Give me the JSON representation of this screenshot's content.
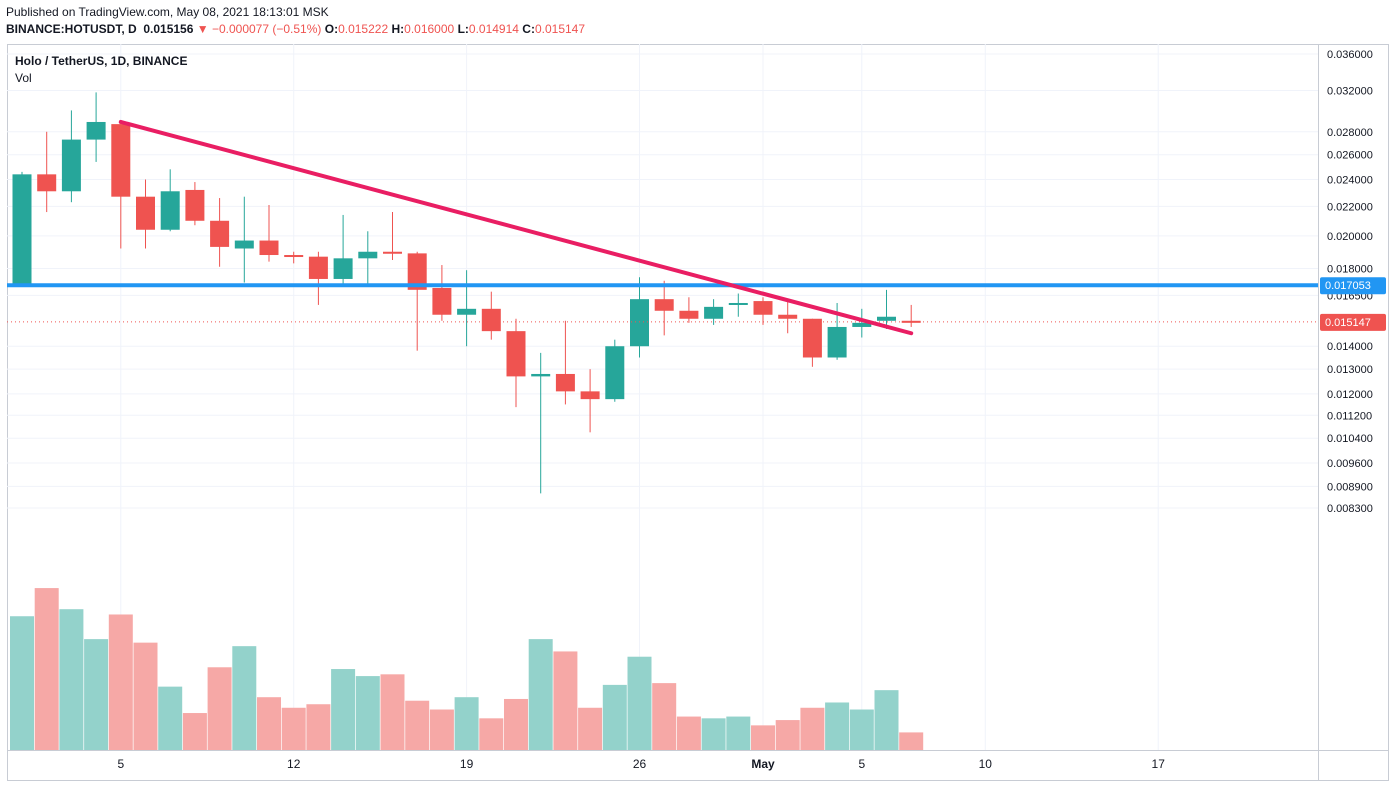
{
  "header": {
    "published": "Published on TradingView.com, May 08, 2021 18:13:01 MSK",
    "symbol": "BINANCE:HOTUSDT, D",
    "last": "0.015156",
    "change": "▼ −0.000077 (−0.51%)",
    "o_label": "O:",
    "o_value": "0.015222",
    "h_label": "H:",
    "h_value": "0.016000",
    "l_label": "L:",
    "l_value": "0.014914",
    "c_label": "C:",
    "c_value": "0.015147"
  },
  "legend": {
    "title": "Holo / TetherUS, 1D, BINANCE",
    "volume": "Vol"
  },
  "colors": {
    "up": "#26a69a",
    "down": "#ef5350",
    "up_vol": "#93d2cb",
    "down_vol": "#f6a8a6",
    "trendline": "#e91e63",
    "support": "#2196f3",
    "grid": "#f0f3fa",
    "axis_text": "#131722"
  },
  "chart_data": {
    "type": "candlestick",
    "title": "Holo / TetherUS, 1D, BINANCE",
    "y_scale": "log",
    "price_ticks": [
      "0.036000",
      "0.032000",
      "0.028000",
      "0.026000",
      "0.024000",
      "0.022000",
      "0.020000",
      "0.018000",
      "0.016500",
      "0.014000",
      "0.013000",
      "0.012000",
      "0.011200",
      "0.010400",
      "0.009600",
      "0.008900",
      "0.008300"
    ],
    "x_tick_labels": [
      {
        "date": "2021-04-05",
        "label": "5"
      },
      {
        "date": "2021-04-12",
        "label": "12"
      },
      {
        "date": "2021-04-19",
        "label": "19"
      },
      {
        "date": "2021-04-26",
        "label": "26"
      },
      {
        "date": "2021-05-01",
        "label": "May"
      },
      {
        "date": "2021-05-05",
        "label": "5"
      },
      {
        "date": "2021-05-10",
        "label": "10"
      },
      {
        "date": "2021-05-17",
        "label": "17"
      }
    ],
    "candles": [
      {
        "date": "2021-04-01",
        "o": 0.0171,
        "h": 0.0246,
        "l": 0.017,
        "c": 0.0244
      },
      {
        "date": "2021-04-02",
        "o": 0.0244,
        "h": 0.028,
        "l": 0.0216,
        "c": 0.0231
      },
      {
        "date": "2021-04-03",
        "o": 0.0231,
        "h": 0.03,
        "l": 0.0223,
        "c": 0.0273
      },
      {
        "date": "2021-04-04",
        "o": 0.0273,
        "h": 0.0318,
        "l": 0.0254,
        "c": 0.0289
      },
      {
        "date": "2021-04-05",
        "o": 0.0287,
        "h": 0.0289,
        "l": 0.0192,
        "c": 0.0227
      },
      {
        "date": "2021-04-06",
        "o": 0.0227,
        "h": 0.024,
        "l": 0.0192,
        "c": 0.0204
      },
      {
        "date": "2021-04-07",
        "o": 0.0204,
        "h": 0.0248,
        "l": 0.0203,
        "c": 0.0231
      },
      {
        "date": "2021-04-08",
        "o": 0.0232,
        "h": 0.0238,
        "l": 0.0207,
        "c": 0.021
      },
      {
        "date": "2021-04-09",
        "o": 0.021,
        "h": 0.0226,
        "l": 0.0181,
        "c": 0.0193
      },
      {
        "date": "2021-04-10",
        "o": 0.0192,
        "h": 0.0227,
        "l": 0.0172,
        "c": 0.0197
      },
      {
        "date": "2021-04-11",
        "o": 0.0197,
        "h": 0.0221,
        "l": 0.0184,
        "c": 0.0188
      },
      {
        "date": "2021-04-12",
        "o": 0.0188,
        "h": 0.019,
        "l": 0.0183,
        "c": 0.0187
      },
      {
        "date": "2021-04-13",
        "o": 0.0187,
        "h": 0.019,
        "l": 0.016,
        "c": 0.0174
      },
      {
        "date": "2021-04-14",
        "o": 0.0174,
        "h": 0.0214,
        "l": 0.017,
        "c": 0.0186
      },
      {
        "date": "2021-04-15",
        "o": 0.0186,
        "h": 0.0203,
        "l": 0.017,
        "c": 0.019
      },
      {
        "date": "2021-04-16",
        "o": 0.019,
        "h": 0.0216,
        "l": 0.0185,
        "c": 0.0189
      },
      {
        "date": "2021-04-17",
        "o": 0.0189,
        "h": 0.019,
        "l": 0.0138,
        "c": 0.0168
      },
      {
        "date": "2021-04-18",
        "o": 0.0169,
        "h": 0.0182,
        "l": 0.0152,
        "c": 0.0155
      },
      {
        "date": "2021-04-19",
        "o": 0.0155,
        "h": 0.0179,
        "l": 0.014,
        "c": 0.0158
      },
      {
        "date": "2021-04-20",
        "o": 0.0158,
        "h": 0.0167,
        "l": 0.0143,
        "c": 0.0147
      },
      {
        "date": "2021-04-21",
        "o": 0.0147,
        "h": 0.0153,
        "l": 0.0115,
        "c": 0.0127
      },
      {
        "date": "2021-04-22",
        "o": 0.0127,
        "h": 0.0137,
        "l": 0.0087,
        "c": 0.0128
      },
      {
        "date": "2021-04-23",
        "o": 0.0128,
        "h": 0.0152,
        "l": 0.0116,
        "c": 0.0121
      },
      {
        "date": "2021-04-24",
        "o": 0.0121,
        "h": 0.013,
        "l": 0.0106,
        "c": 0.0118
      },
      {
        "date": "2021-04-25",
        "o": 0.0118,
        "h": 0.0143,
        "l": 0.0117,
        "c": 0.014
      },
      {
        "date": "2021-04-26",
        "o": 0.014,
        "h": 0.0175,
        "l": 0.0135,
        "c": 0.0163
      },
      {
        "date": "2021-04-27",
        "o": 0.0163,
        "h": 0.0173,
        "l": 0.0145,
        "c": 0.0157
      },
      {
        "date": "2021-04-28",
        "o": 0.0157,
        "h": 0.0164,
        "l": 0.0151,
        "c": 0.0153
      },
      {
        "date": "2021-04-29",
        "o": 0.0153,
        "h": 0.0163,
        "l": 0.015,
        "c": 0.0159
      },
      {
        "date": "2021-04-30",
        "o": 0.016,
        "h": 0.0166,
        "l": 0.0154,
        "c": 0.0161
      },
      {
        "date": "2021-05-01",
        "o": 0.0162,
        "h": 0.0164,
        "l": 0.015,
        "c": 0.0155
      },
      {
        "date": "2021-05-02",
        "o": 0.0155,
        "h": 0.0162,
        "l": 0.0146,
        "c": 0.0153
      },
      {
        "date": "2021-05-03",
        "o": 0.0153,
        "h": 0.0153,
        "l": 0.0131,
        "c": 0.0135
      },
      {
        "date": "2021-05-04",
        "o": 0.0135,
        "h": 0.0161,
        "l": 0.0134,
        "c": 0.0149
      },
      {
        "date": "2021-05-05",
        "o": 0.0149,
        "h": 0.0158,
        "l": 0.0144,
        "c": 0.0151
      },
      {
        "date": "2021-05-06",
        "o": 0.0152,
        "h": 0.0168,
        "l": 0.0148,
        "c": 0.0154
      },
      {
        "date": "2021-05-07",
        "o": 0.0152,
        "h": 0.016,
        "l": 0.0149,
        "c": 0.0151
      }
    ],
    "volume_relative": [
      0.76,
      0.92,
      0.8,
      0.63,
      0.77,
      0.61,
      0.36,
      0.21,
      0.47,
      0.59,
      0.3,
      0.24,
      0.26,
      0.46,
      0.42,
      0.43,
      0.28,
      0.23,
      0.3,
      0.18,
      0.29,
      0.63,
      0.56,
      0.24,
      0.37,
      0.53,
      0.38,
      0.19,
      0.18,
      0.19,
      0.14,
      0.17,
      0.24,
      0.27,
      0.23,
      0.34,
      0.1
    ],
    "lines": [
      {
        "name": "trendline",
        "from": {
          "date": "2021-04-05",
          "price": 0.0289
        },
        "to": {
          "date": "2021-05-07",
          "price": 0.0146
        }
      },
      {
        "name": "support",
        "price": 0.017053,
        "label": "0.017053"
      }
    ],
    "current_price": {
      "price": 0.015147,
      "label": "0.015147"
    }
  }
}
